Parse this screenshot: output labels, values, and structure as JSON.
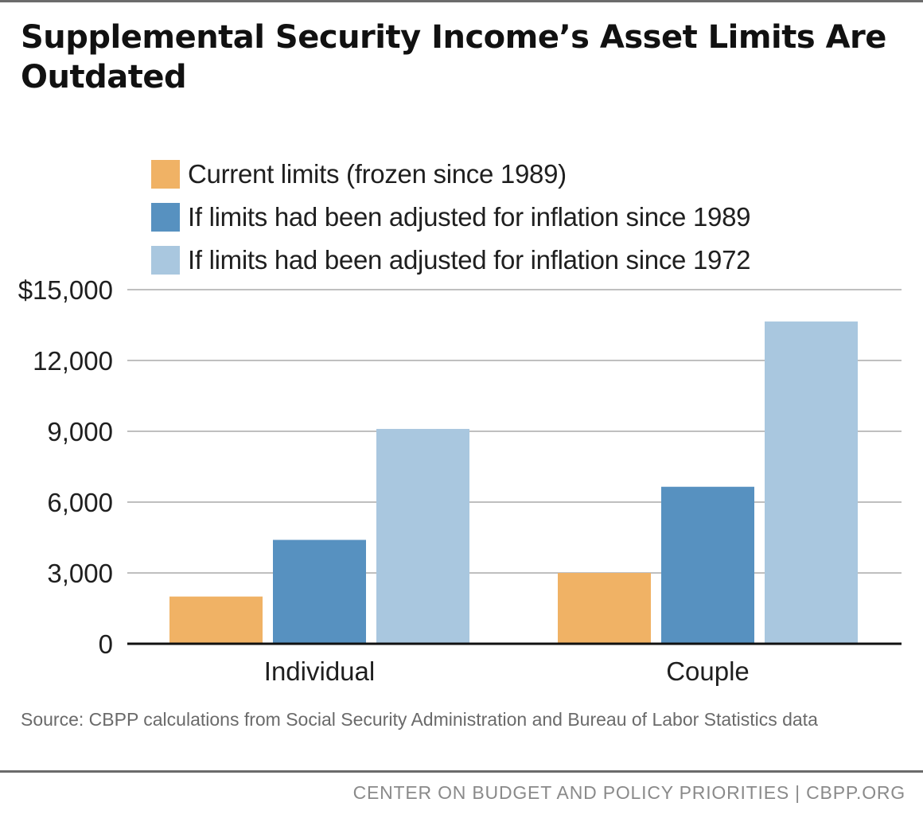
{
  "title": "Supplemental Security Income’s Asset Limits Are Outdated",
  "colors": {
    "current": "#f0b265",
    "inflation_1989": "#5791c0",
    "inflation_1972": "#a9c7df",
    "grid": "#aaaaaa",
    "axis": "#111111"
  },
  "chart_data": {
    "type": "bar",
    "categories": [
      "Individual",
      "Couple"
    ],
    "series": [
      {
        "name": "Current limits (frozen since 1989)",
        "values": [
          2000,
          3000
        ],
        "color_key": "current"
      },
      {
        "name": "If limits had been adjusted for inflation since 1989",
        "values": [
          4400,
          6650
        ],
        "color_key": "inflation_1989"
      },
      {
        "name": "If limits had been adjusted for inflation since 1972",
        "values": [
          9100,
          13650
        ],
        "color_key": "inflation_1972"
      }
    ],
    "ylim": [
      0,
      15000
    ],
    "yticks": [
      0,
      3000,
      6000,
      9000,
      12000,
      15000
    ],
    "ytick_labels": [
      "0",
      "3,000",
      "6,000",
      "9,000",
      "12,000",
      "$15,000"
    ],
    "grid": true,
    "legend_position": "top-left"
  },
  "source": "Source: CBPP calculations from Social Security Administration and Bureau of Labor Statistics data",
  "footer": "CENTER ON BUDGET AND POLICY PRIORITIES | CBPP.ORG"
}
